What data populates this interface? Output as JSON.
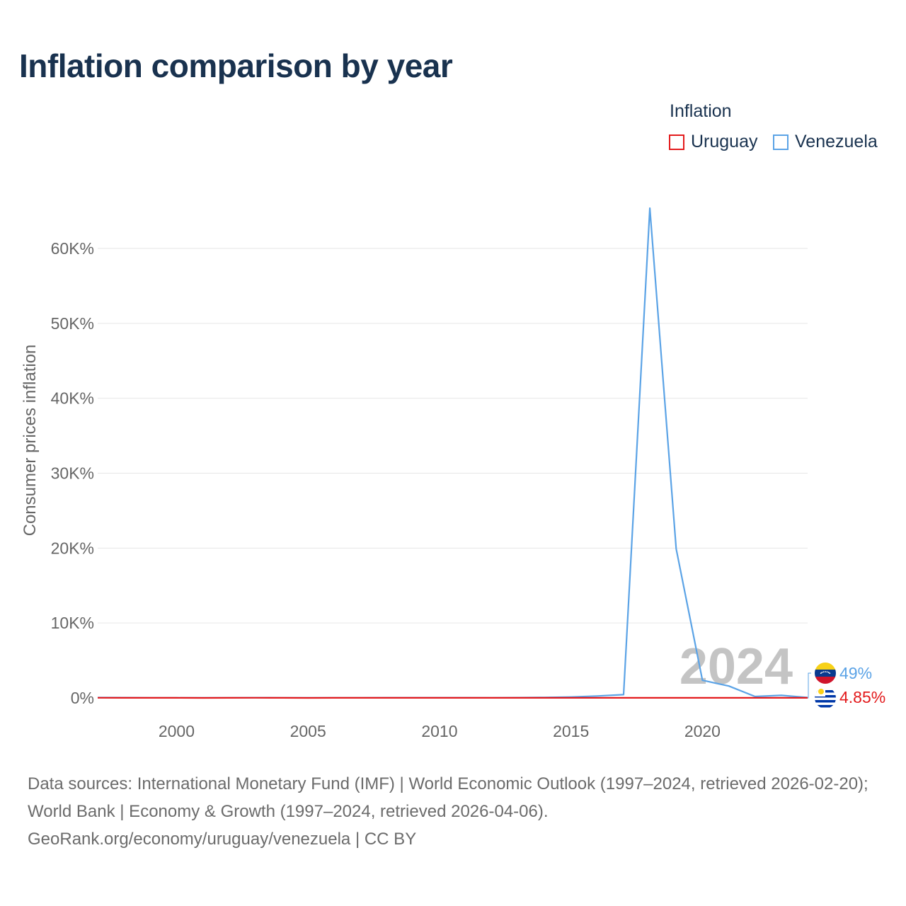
{
  "title": "Inflation comparison by year",
  "legend": {
    "title": "Inflation",
    "items": [
      {
        "name": "Uruguay",
        "color": "#e31a1c"
      },
      {
        "name": "Venezuela",
        "color": "#5ba3e6"
      }
    ]
  },
  "chart_data": {
    "type": "line",
    "title": "Inflation comparison by year",
    "ylabel": "Consumer prices inflation",
    "xlabel": "",
    "xlim": [
      1997,
      2024
    ],
    "ylim": [
      0,
      70000
    ],
    "yticks": [
      {
        "value": 0,
        "label": "0%"
      },
      {
        "value": 10000,
        "label": "10K%"
      },
      {
        "value": 20000,
        "label": "20K%"
      },
      {
        "value": 30000,
        "label": "30K%"
      },
      {
        "value": 40000,
        "label": "40K%"
      },
      {
        "value": 50000,
        "label": "50K%"
      },
      {
        "value": 60000,
        "label": "60K%"
      }
    ],
    "xticks": [
      {
        "value": 2000,
        "label": "2000"
      },
      {
        "value": 2005,
        "label": "2005"
      },
      {
        "value": 2010,
        "label": "2010"
      },
      {
        "value": 2015,
        "label": "2015"
      },
      {
        "value": 2020,
        "label": "2020"
      }
    ],
    "x": [
      1997,
      1998,
      1999,
      2000,
      2001,
      2002,
      2003,
      2004,
      2005,
      2006,
      2007,
      2008,
      2009,
      2010,
      2011,
      2012,
      2013,
      2014,
      2015,
      2016,
      2017,
      2018,
      2019,
      2020,
      2021,
      2022,
      2023,
      2024
    ],
    "series": [
      {
        "name": "Uruguay",
        "color": "#e31a1c",
        "values": [
          19.8,
          10.8,
          5.7,
          4.8,
          4.4,
          14.0,
          19.4,
          9.2,
          4.7,
          6.4,
          8.1,
          7.9,
          7.1,
          6.7,
          8.1,
          8.1,
          8.6,
          8.9,
          8.7,
          9.6,
          6.2,
          7.6,
          7.9,
          9.8,
          7.7,
          9.1,
          5.9,
          4.85
        ],
        "end_label": "4.85%"
      },
      {
        "name": "Venezuela",
        "color": "#5ba3e6",
        "values": [
          50.0,
          35.8,
          23.6,
          16.2,
          12.5,
          22.4,
          31.1,
          21.7,
          16.0,
          13.7,
          18.7,
          31.4,
          26.0,
          28.2,
          26.1,
          21.1,
          40.6,
          62.2,
          121.7,
          254.9,
          438.1,
          65374.1,
          19906.0,
          2355.1,
          1588.5,
          186.5,
          337.5,
          49
        ],
        "end_label": "49%"
      }
    ],
    "annotation_year": "2024"
  },
  "footer": {
    "line1": "Data sources: International Monetary Fund (IMF) | World Economic Outlook (1997–2024, retrieved 2026-02-20); World Bank | Economy & Growth (1997–2024, retrieved 2026-04-06).",
    "line2": "GeoRank.org/economy/uruguay/venezuela | CC BY"
  }
}
